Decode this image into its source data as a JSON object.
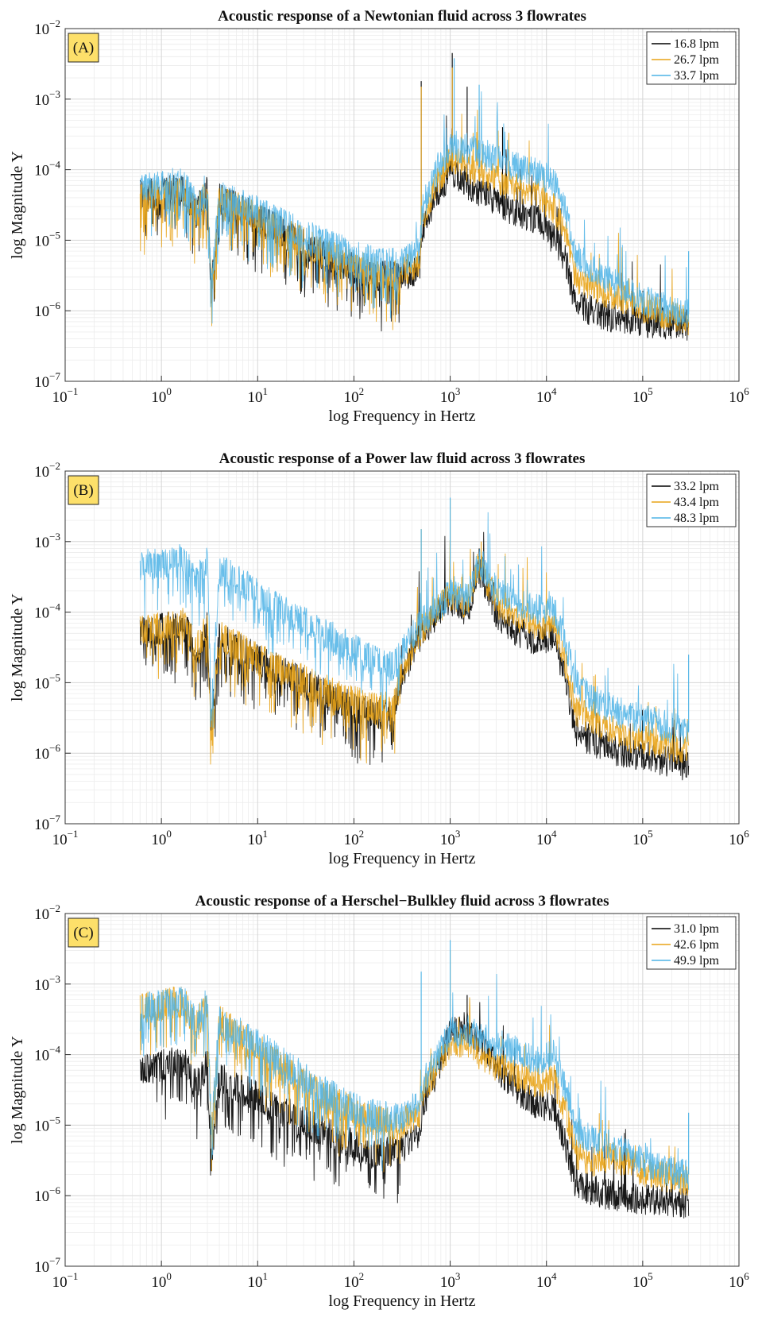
{
  "chart_data": [
    {
      "type": "line",
      "panel_label": "(A)",
      "title": "Acoustic response of a Newtonian fluid across 3 flowrates",
      "xlabel": "log Frequency in Hertz",
      "ylabel": "log Magnitude Y",
      "xscale": "log",
      "yscale": "log",
      "xlim": [
        0.1,
        1000000
      ],
      "ylim": [
        1e-07,
        0.01
      ],
      "x_ticks": [
        {
          "base": "10",
          "exp": "−1"
        },
        {
          "base": "10",
          "exp": "0"
        },
        {
          "base": "10",
          "exp": "1"
        },
        {
          "base": "10",
          "exp": "2"
        },
        {
          "base": "10",
          "exp": "3"
        },
        {
          "base": "10",
          "exp": "4"
        },
        {
          "base": "10",
          "exp": "5"
        },
        {
          "base": "10",
          "exp": "6"
        }
      ],
      "y_ticks": [
        {
          "base": "10",
          "exp": "−7"
        },
        {
          "base": "10",
          "exp": "−6"
        },
        {
          "base": "10",
          "exp": "−5"
        },
        {
          "base": "10",
          "exp": "−4"
        },
        {
          "base": "10",
          "exp": "−3"
        },
        {
          "base": "10",
          "exp": "−2"
        }
      ],
      "grid": true,
      "legend_position": "top-right",
      "series": [
        {
          "name": "16.8 lpm",
          "color": "#000000",
          "x": [
            0.6,
            1.0,
            1.7,
            2.3,
            3.0,
            3.3,
            4.0,
            6.0,
            10,
            20,
            40,
            80,
            150,
            300,
            480,
            520,
            700,
            1000,
            1500,
            2000,
            3000,
            5000,
            8000,
            12000,
            16000,
            20000,
            30000,
            50000,
            100000,
            200000,
            300000
          ],
          "y": [
            4.2e-05,
            4.8e-05,
            5.2e-05,
            2.5e-05,
            5e-05,
            1.8e-06,
            3.8e-05,
            2.9e-05,
            2e-05,
            1.2e-05,
            7e-06,
            4.5e-06,
            3.2e-06,
            3e-06,
            4e-06,
            1.5e-05,
            4e-05,
            9e-05,
            6e-05,
            5e-05,
            3.5e-05,
            2.5e-05,
            2e-05,
            1e-05,
            5e-06,
            1.2e-06,
            1e-06,
            8e-07,
            7e-07,
            6.5e-07,
            6.2e-07
          ],
          "spikes": [
            {
              "x": 500,
              "y": 0.0018
            },
            {
              "x": 1050,
              "y": 0.0045
            },
            {
              "x": 1500,
              "y": 0.0015
            },
            {
              "x": 2000,
              "y": 0.0008
            },
            {
              "x": 3500,
              "y": 0.0004
            }
          ]
        },
        {
          "name": "26.7 lpm",
          "color": "#e8a317",
          "x": [
            0.6,
            1.0,
            1.7,
            2.3,
            3.0,
            3.3,
            4.0,
            6.0,
            10,
            20,
            40,
            80,
            150,
            300,
            480,
            520,
            700,
            1000,
            1500,
            2000,
            3000,
            5000,
            8000,
            12000,
            16000,
            20000,
            30000,
            50000,
            100000,
            200000,
            300000
          ],
          "y": [
            3.8e-05,
            4.4e-05,
            4.9e-05,
            2.3e-05,
            4.8e-05,
            2e-06,
            3.6e-05,
            2.9e-05,
            2e-05,
            1.2e-05,
            7.5e-06,
            5e-06,
            3.6e-06,
            3.4e-06,
            5e-06,
            2e-05,
            6e-05,
            0.00014,
            0.00011,
            9e-05,
            7e-05,
            5.5e-05,
            4.5e-05,
            2.8e-05,
            1.2e-05,
            3e-06,
            2.2e-06,
            1.6e-06,
            1.1e-06,
            8.5e-07,
            7.5e-07
          ],
          "spikes": [
            {
              "x": 1050,
              "y": 0.0028
            },
            {
              "x": 500,
              "y": 0.0015
            }
          ]
        },
        {
          "name": "33.7 lpm",
          "color": "#4db3e6",
          "x": [
            0.6,
            1.0,
            1.7,
            2.3,
            3.0,
            3.3,
            4.0,
            6.0,
            10,
            20,
            40,
            80,
            150,
            300,
            480,
            520,
            700,
            1000,
            1500,
            2000,
            3000,
            5000,
            8000,
            12000,
            16000,
            20000,
            30000,
            50000,
            100000,
            200000,
            300000
          ],
          "y": [
            5.2e-05,
            6e-05,
            6.5e-05,
            3e-05,
            5.8e-05,
            2.2e-06,
            4.2e-05,
            3.4e-05,
            2.5e-05,
            1.6e-05,
            1e-05,
            7e-06,
            5e-06,
            4.5e-06,
            7e-06,
            3e-05,
            8e-05,
            0.00022,
            0.0002,
            0.00017,
            0.00014,
            0.00011,
            9e-05,
            6.5e-05,
            2.5e-05,
            6e-06,
            4e-06,
            2.5e-06,
            1.4e-06,
            1e-06,
            9e-07
          ],
          "spikes": [
            {
              "x": 1100,
              "y": 0.0038
            },
            {
              "x": 2000,
              "y": 0.0016
            },
            {
              "x": 300000,
              "y": 7e-06
            }
          ]
        }
      ]
    },
    {
      "type": "line",
      "panel_label": "(B)",
      "title": "Acoustic response of a Power law fluid across 3 flowrates",
      "xlabel": "log Frequency in Hertz",
      "ylabel": "log Magnitude Y",
      "xscale": "log",
      "yscale": "log",
      "xlim": [
        0.1,
        1000000
      ],
      "ylim": [
        1e-07,
        0.01
      ],
      "x_ticks": [
        {
          "base": "10",
          "exp": "−1"
        },
        {
          "base": "10",
          "exp": "0"
        },
        {
          "base": "10",
          "exp": "1"
        },
        {
          "base": "10",
          "exp": "2"
        },
        {
          "base": "10",
          "exp": "3"
        },
        {
          "base": "10",
          "exp": "4"
        },
        {
          "base": "10",
          "exp": "5"
        },
        {
          "base": "10",
          "exp": "6"
        }
      ],
      "y_ticks": [
        {
          "base": "10",
          "exp": "−7"
        },
        {
          "base": "10",
          "exp": "−6"
        },
        {
          "base": "10",
          "exp": "−5"
        },
        {
          "base": "10",
          "exp": "−4"
        },
        {
          "base": "10",
          "exp": "−3"
        },
        {
          "base": "10",
          "exp": "−2"
        }
      ],
      "grid": true,
      "legend_position": "top-right",
      "series": [
        {
          "name": "33.2 lpm",
          "color": "#000000",
          "x": [
            0.6,
            1.0,
            1.7,
            2.3,
            3.0,
            3.3,
            4.0,
            6.0,
            10,
            20,
            40,
            80,
            150,
            260,
            300,
            500,
            1000,
            1500,
            2000,
            3000,
            5000,
            8000,
            12000,
            16000,
            20000,
            30000,
            50000,
            100000,
            200000,
            300000
          ],
          "y": [
            5e-05,
            5.8e-05,
            6.5e-05,
            3e-05,
            6e-05,
            2.3e-06,
            4.5e-05,
            3.2e-05,
            2.2e-05,
            1.3e-05,
            8e-06,
            5e-06,
            3.6e-06,
            3.6e-06,
            1e-05,
            5e-05,
            0.00015,
            0.0001,
            0.0004,
            0.0001,
            5e-05,
            4e-05,
            4.5e-05,
            1e-05,
            2e-06,
            1.5e-06,
            1.1e-06,
            9e-07,
            7.5e-07,
            6.5e-07
          ],
          "spikes": [
            {
              "x": 1000,
              "y": 0.0003
            },
            {
              "x": 2000,
              "y": 0.0008
            }
          ]
        },
        {
          "name": "43.4 lpm",
          "color": "#e8a317",
          "x": [
            0.6,
            1.0,
            1.7,
            2.3,
            3.0,
            3.3,
            4.0,
            6.0,
            10,
            20,
            40,
            80,
            150,
            260,
            300,
            500,
            1000,
            1500,
            2000,
            3000,
            5000,
            8000,
            12000,
            16000,
            20000,
            30000,
            50000,
            100000,
            200000,
            300000
          ],
          "y": [
            5.2e-05,
            6e-05,
            6.8e-05,
            3.1e-05,
            6.2e-05,
            2.4e-06,
            4.6e-05,
            3.3e-05,
            2.3e-05,
            1.4e-05,
            9e-06,
            6e-06,
            4.5e-06,
            4.5e-06,
            1.2e-05,
            5.5e-05,
            0.00017,
            0.00013,
            0.0005,
            0.00014,
            8e-05,
            6.5e-05,
            6.5e-05,
            1.8e-05,
            4e-06,
            3e-06,
            2e-06,
            1.5e-06,
            1.2e-06,
            1.1e-06
          ],
          "spikes": [
            {
              "x": 1000,
              "y": 0.004
            },
            {
              "x": 2100,
              "y": 0.001
            },
            {
              "x": 500,
              "y": 0.0015
            }
          ]
        },
        {
          "name": "48.3 lpm",
          "color": "#4db3e6",
          "x": [
            0.6,
            1.0,
            1.7,
            2.3,
            3.0,
            3.3,
            4.0,
            6.0,
            10,
            20,
            40,
            80,
            150,
            260,
            300,
            500,
            1000,
            1500,
            2000,
            3000,
            5000,
            8000,
            12000,
            16000,
            20000,
            30000,
            50000,
            100000,
            200000,
            300000
          ],
          "y": [
            0.00045,
            0.0005,
            0.00058,
            0.00025,
            0.00055,
            4e-06,
            0.0004,
            0.0003,
            0.00018,
            0.0001,
            6e-05,
            3.5e-05,
            2.2e-05,
            1.6e-05,
            2.5e-05,
            7e-05,
            0.00018,
            0.00015,
            0.00055,
            0.0002,
            0.00013,
            0.00011,
            0.00011,
            3.5e-05,
            1e-05,
            6e-06,
            4e-06,
            3e-06,
            2.3e-06,
            2e-06
          ],
          "spikes": [
            {
              "x": 500,
              "y": 0.0015
            },
            {
              "x": 1000,
              "y": 0.0042
            },
            {
              "x": 300000,
              "y": 2.5e-05
            }
          ]
        }
      ]
    },
    {
      "type": "line",
      "panel_label": "(C)",
      "title": "Acoustic response of a Herschel−Bulkley fluid across 3 flowrates",
      "xlabel": "log Frequency in Hertz",
      "ylabel": "log Magnitude Y",
      "xscale": "log",
      "yscale": "log",
      "xlim": [
        0.1,
        1000000
      ],
      "ylim": [
        1e-07,
        0.01
      ],
      "x_ticks": [
        {
          "base": "10",
          "exp": "−1"
        },
        {
          "base": "10",
          "exp": "0"
        },
        {
          "base": "10",
          "exp": "1"
        },
        {
          "base": "10",
          "exp": "2"
        },
        {
          "base": "10",
          "exp": "3"
        },
        {
          "base": "10",
          "exp": "4"
        },
        {
          "base": "10",
          "exp": "5"
        },
        {
          "base": "10",
          "exp": "6"
        }
      ],
      "y_ticks": [
        {
          "base": "10",
          "exp": "−7"
        },
        {
          "base": "10",
          "exp": "−6"
        },
        {
          "base": "10",
          "exp": "−5"
        },
        {
          "base": "10",
          "exp": "−4"
        },
        {
          "base": "10",
          "exp": "−3"
        },
        {
          "base": "10",
          "exp": "−2"
        }
      ],
      "grid": true,
      "legend_position": "top-right",
      "series": [
        {
          "name": "31.0 lpm",
          "color": "#000000",
          "x": [
            0.6,
            1.0,
            1.7,
            2.3,
            3.0,
            3.3,
            4.0,
            6.0,
            10,
            20,
            40,
            80,
            150,
            300,
            480,
            520,
            700,
            1000,
            1500,
            2000,
            3000,
            5000,
            8000,
            12000,
            16000,
            20000,
            30000,
            50000,
            100000,
            200000,
            300000
          ],
          "y": [
            6e-05,
            7e-05,
            8e-05,
            3.5e-05,
            7.5e-05,
            2.5e-06,
            5e-05,
            3.5e-05,
            2.5e-05,
            1.5e-05,
            9e-06,
            6e-06,
            4e-06,
            4.5e-06,
            8e-06,
            2e-05,
            5e-05,
            0.0002,
            0.00025,
            0.00015,
            7e-05,
            3e-05,
            2e-05,
            1.8e-05,
            5e-06,
            1.5e-06,
            1.2e-06,
            1e-06,
            9e-07,
            8e-07,
            7.5e-07
          ],
          "spikes": [
            {
              "x": 1500,
              "y": 0.0007
            }
          ]
        },
        {
          "name": "42.6 lpm",
          "color": "#e8a317",
          "x": [
            0.6,
            1.0,
            1.7,
            2.3,
            3.0,
            3.3,
            4.0,
            6.0,
            10,
            20,
            40,
            80,
            150,
            300,
            480,
            520,
            700,
            1000,
            1500,
            2000,
            3000,
            5000,
            8000,
            12000,
            16000,
            20000,
            30000,
            50000,
            100000,
            200000,
            300000
          ],
          "y": [
            0.00045,
            0.0005,
            0.00058,
            0.00025,
            0.00055,
            8e-06,
            0.0003,
            0.0002,
            0.00012,
            6e-05,
            3e-05,
            1.8e-05,
            1.2e-05,
            1e-05,
            1.5e-05,
            3e-05,
            6e-05,
            0.00015,
            0.00015,
            0.0001,
            7e-05,
            5e-05,
            4e-05,
            4.5e-05,
            1.5e-05,
            4e-06,
            3e-06,
            3.5e-06,
            2.2e-06,
            1.8e-06,
            1.6e-06
          ],
          "spikes": [
            {
              "x": 1000,
              "y": 0.003
            }
          ]
        },
        {
          "name": "49.9 lpm",
          "color": "#4db3e6",
          "x": [
            0.6,
            1.0,
            1.7,
            2.3,
            3.0,
            3.3,
            4.0,
            6.0,
            10,
            20,
            40,
            80,
            150,
            300,
            480,
            520,
            700,
            1000,
            1500,
            2000,
            3000,
            5000,
            8000,
            12000,
            16000,
            20000,
            30000,
            50000,
            100000,
            200000,
            300000
          ],
          "y": [
            0.00045,
            0.0005,
            0.00058,
            0.00026,
            0.00056,
            8e-06,
            0.00032,
            0.00022,
            0.00014,
            7e-05,
            3.5e-05,
            2e-05,
            1.4e-05,
            1.2e-05,
            2e-05,
            4e-05,
            8e-05,
            0.0002,
            0.00022,
            0.00018,
            0.00014,
            0.00011,
            8e-05,
            0.0001,
            3e-05,
            8e-06,
            6e-06,
            5e-06,
            3e-06,
            2.2e-06,
            2e-06
          ],
          "spikes": [
            {
              "x": 500,
              "y": 0.0015
            },
            {
              "x": 1000,
              "y": 0.0042
            },
            {
              "x": 300000,
              "y": 1.5e-05
            }
          ]
        }
      ]
    }
  ]
}
